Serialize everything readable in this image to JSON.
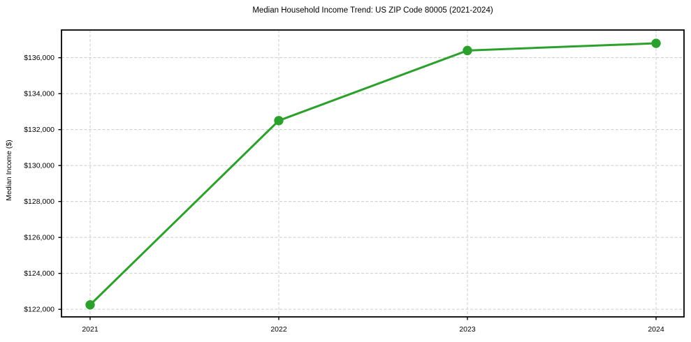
{
  "page": {
    "background_color": "#ffffff"
  },
  "chart_data": {
    "type": "line",
    "title": "Median Household Income Trend: US ZIP Code 80005 (2021-2024)",
    "xlabel": "",
    "ylabel": "Median Income ($)",
    "x": [
      2021,
      2022,
      2023,
      2024
    ],
    "x_tick_labels": [
      "2021",
      "2022",
      "2023",
      "2024"
    ],
    "series": [
      {
        "name": "Median Household Income",
        "values": [
          122250,
          132500,
          136400,
          136800
        ],
        "color": "#2ca02c",
        "marker": "circle",
        "line_style": "solid"
      }
    ],
    "y_ticks": [
      122000,
      124000,
      126000,
      128000,
      130000,
      132000,
      134000,
      136000
    ],
    "y_tick_labels": [
      "$122,000",
      "$124,000",
      "$126,000",
      "$128,000",
      "$130,000",
      "$132,000",
      "$134,000",
      "$136,000"
    ],
    "ylim": [
      121580,
      137540
    ],
    "grid": {
      "visible": true,
      "style": "dashed",
      "color": "#cccccc",
      "axes": "both"
    },
    "legend_position": "none",
    "frame_color": "#000000",
    "tick_color": "#000000",
    "text_color": "#000000"
  }
}
